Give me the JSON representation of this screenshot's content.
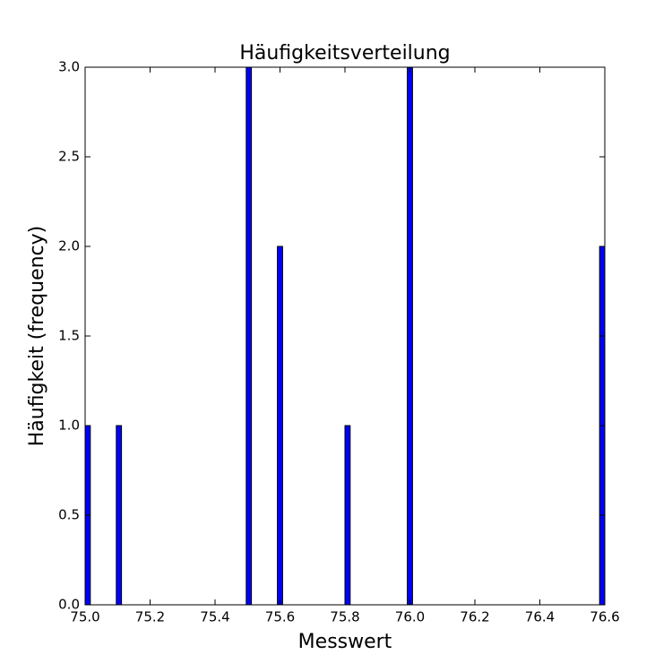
{
  "chart_data": {
    "type": "histogram",
    "title": "Häufigkeitsverteilung",
    "x_label": "Messwert",
    "y_label": "Häufigkeit (frequency)",
    "color": "#0000ff",
    "bins": [
      75,
      75.016,
      75.032,
      75.048,
      75.064,
      75.08,
      75.096,
      75.112,
      75.128,
      75.144,
      75.16,
      75.176,
      75.192,
      75.208,
      75.224,
      75.24,
      75.256,
      75.272,
      75.288,
      75.304,
      75.32,
      75.336,
      75.352,
      75.368,
      75.384,
      75.4,
      75.416,
      75.432,
      75.448,
      75.464,
      75.48,
      75.496,
      75.512,
      75.528,
      75.544,
      75.56,
      75.576,
      75.592,
      75.608,
      75.624,
      75.64,
      75.656,
      75.672,
      75.688,
      75.704,
      75.72,
      75.736,
      75.752,
      75.768,
      75.784,
      75.8,
      75.816,
      75.832,
      75.848,
      75.864,
      75.88,
      75.896,
      75.912,
      75.928,
      75.944,
      75.96,
      75.976,
      75.992,
      76.008,
      76.024,
      76.04,
      76.056,
      76.072,
      76.088,
      76.104,
      76.12,
      76.136,
      76.152,
      76.168,
      76.184,
      76.2,
      76.216,
      76.232,
      76.248,
      76.264,
      76.28,
      76.296,
      76.312,
      76.328,
      76.344,
      76.36,
      76.376,
      76.392,
      76.408,
      76.424,
      76.44,
      76.456,
      76.472,
      76.488,
      76.504,
      76.52,
      76.536,
      76.552,
      76.568,
      76.584,
      76.6
    ],
    "counts": [
      1,
      0,
      0,
      0,
      0,
      0,
      1,
      0,
      0,
      0,
      0,
      0,
      0,
      0,
      0,
      0,
      0,
      0,
      0,
      0,
      0,
      0,
      0,
      0,
      0,
      0,
      0,
      0,
      0,
      0,
      0,
      3,
      0,
      0,
      0,
      0,
      0,
      2,
      0,
      0,
      0,
      0,
      0,
      0,
      0,
      0,
      0,
      0,
      0,
      0,
      1,
      0,
      0,
      0,
      0,
      0,
      0,
      0,
      0,
      0,
      0,
      0,
      3,
      0,
      0,
      0,
      0,
      0,
      0,
      0,
      0,
      0,
      0,
      0,
      0,
      0,
      0,
      0,
      0,
      0,
      0,
      0,
      0,
      0,
      0,
      0,
      0,
      0,
      0,
      0,
      0,
      0,
      0,
      0,
      0,
      0,
      0,
      0,
      0,
      2
    ],
    "xlim": [
      75,
      76.6
    ],
    "ylim": [
      0,
      3
    ],
    "xticks": [
      {
        "value": 75,
        "label": "75.0"
      },
      75.2,
      75.4,
      75.6,
      75.8,
      {
        "value": 76,
        "label": "76.0"
      },
      76.2,
      76.4,
      76.6
    ],
    "yticks": [
      {
        "value": 0,
        "label": "0.0"
      },
      0.5,
      {
        "value": 1,
        "label": "1.0"
      },
      1.5,
      {
        "value": 2,
        "label": "2.0"
      },
      2.5,
      {
        "value": 3,
        "label": "3.0"
      }
    ],
    "grid": false
  }
}
